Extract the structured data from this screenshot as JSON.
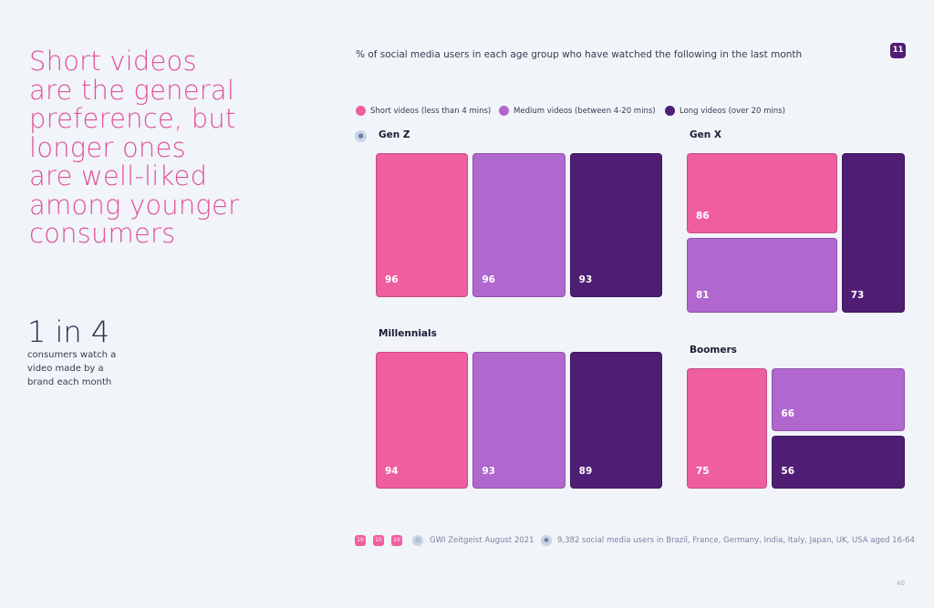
{
  "headline": {
    "lines": [
      "Short videos",
      "are the general",
      "preference, but",
      "longer ones",
      "are well-liked",
      "among younger",
      "consumers"
    ]
  },
  "stat": {
    "big": "1 in 4",
    "small": "consumers  watch a video made by a brand each month"
  },
  "page_badge": "11",
  "page_number": "40",
  "footer": {
    "badges": [
      "10",
      "10",
      "10"
    ],
    "source": "GWI Zeitgeist August 2021",
    "sample": "9,382 social media users in Brazil, France, Germany, India, Italy, Japan, UK, USA aged 16-64"
  },
  "colors": {
    "short": "#ef5e9f",
    "medium": "#b067ce",
    "long": "#4f1d74",
    "headline": "#e0529a"
  },
  "icons": {
    "legend_group": "globe-icon",
    "footer_source": "clock-icon",
    "footer_sample": "people-icon"
  },
  "chart_data": {
    "type": "treemap",
    "title": "% of social media users in each age group who have watched the following in the last month",
    "legend_position": "top",
    "categories": [
      "Short videos (less than 4 mins)",
      "Medium videos (between 4-20 mins)",
      "Long videos (over 20 mins)"
    ],
    "groups": [
      {
        "name": "Gen Z",
        "values": [
          96,
          96,
          93
        ]
      },
      {
        "name": "Gen X",
        "values": [
          86,
          81,
          73
        ]
      },
      {
        "name": "Millennials",
        "values": [
          94,
          93,
          89
        ]
      },
      {
        "name": "Boomers",
        "values": [
          75,
          66,
          56
        ]
      }
    ],
    "unit": "%"
  }
}
